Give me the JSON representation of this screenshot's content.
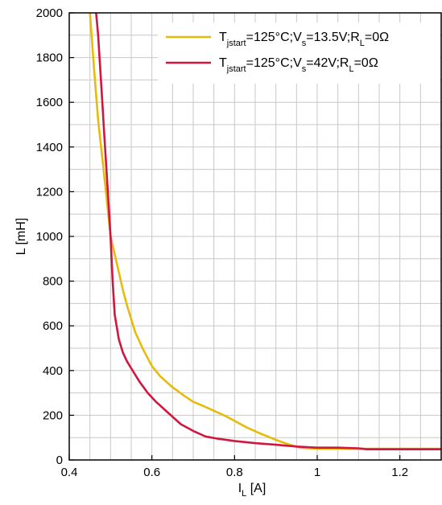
{
  "chart_data": {
    "type": "line",
    "title": "",
    "xlabel": {
      "main": "I",
      "sub": "L",
      "unit": " [A]"
    },
    "ylabel": "L [mH]",
    "xlim": [
      0.4,
      1.3
    ],
    "ylim": [
      0,
      2000
    ],
    "x_ticks": [
      0.4,
      0.6,
      0.8,
      1,
      1.2
    ],
    "x_tick_labels": [
      "0.4",
      "0.6",
      "0.8",
      "1",
      "1.2"
    ],
    "x_minor_step": 0.05,
    "y_ticks": [
      0,
      200,
      400,
      600,
      800,
      1000,
      1200,
      1400,
      1600,
      1800,
      2000
    ],
    "y_tick_labels": [
      "0",
      "200",
      "400",
      "600",
      "800",
      "1000",
      "1200",
      "1400",
      "1600",
      "1800",
      "2000"
    ],
    "y_minor_step": 100,
    "grid": true,
    "legend_position": "top-right",
    "series": [
      {
        "legend": {
          "parts": [
            {
              "t": "T",
              "sub": false
            },
            {
              "t": "jstart",
              "sub": true
            },
            {
              "t": "=125°C;V",
              "sub": false
            },
            {
              "t": "s",
              "sub": true
            },
            {
              "t": "=13.5V;R",
              "sub": false
            },
            {
              "t": "L",
              "sub": true
            },
            {
              "t": "=0Ω",
              "sub": false
            }
          ]
        },
        "color": "#e6bb0c",
        "x": [
          0.45,
          0.46,
          0.47,
          0.48,
          0.49,
          0.5,
          0.51,
          0.52,
          0.53,
          0.54,
          0.55,
          0.56,
          0.58,
          0.6,
          0.62,
          0.65,
          0.68,
          0.7,
          0.72,
          0.75,
          0.78,
          0.8,
          0.83,
          0.86,
          0.9,
          0.93,
          0.96,
          1.0,
          1.05,
          1.1,
          1.15,
          1.2,
          1.25,
          1.3
        ],
        "y": [
          2000,
          1750,
          1520,
          1350,
          1180,
          1000,
          920,
          840,
          760,
          690,
          630,
          570,
          490,
          420,
          375,
          325,
          285,
          260,
          245,
          220,
          195,
          175,
          145,
          120,
          90,
          70,
          55,
          50,
          50,
          50,
          50,
          50,
          50,
          50
        ]
      },
      {
        "legend": {
          "parts": [
            {
              "t": "T",
              "sub": false
            },
            {
              "t": "jstart",
              "sub": true
            },
            {
              "t": "=125°C;V",
              "sub": false
            },
            {
              "t": "s",
              "sub": true
            },
            {
              "t": "=42V;R",
              "sub": false
            },
            {
              "t": "L",
              "sub": true
            },
            {
              "t": "=0Ω",
              "sub": false
            }
          ]
        },
        "color": "#d1173f",
        "x": [
          0.465,
          0.47,
          0.475,
          0.48,
          0.485,
          0.49,
          0.495,
          0.5,
          0.505,
          0.51,
          0.52,
          0.53,
          0.54,
          0.55,
          0.57,
          0.59,
          0.61,
          0.64,
          0.67,
          0.7,
          0.73,
          0.76,
          0.8,
          0.85,
          0.9,
          0.95,
          1.0,
          1.05,
          1.1,
          1.12,
          1.15,
          1.2,
          1.25,
          1.3
        ],
        "y": [
          2000,
          1900,
          1750,
          1600,
          1450,
          1300,
          1150,
          1000,
          800,
          650,
          540,
          480,
          440,
          410,
          350,
          300,
          260,
          210,
          160,
          130,
          105,
          95,
          85,
          75,
          68,
          60,
          55,
          55,
          52,
          48,
          48,
          48,
          48,
          48
        ]
      }
    ]
  }
}
